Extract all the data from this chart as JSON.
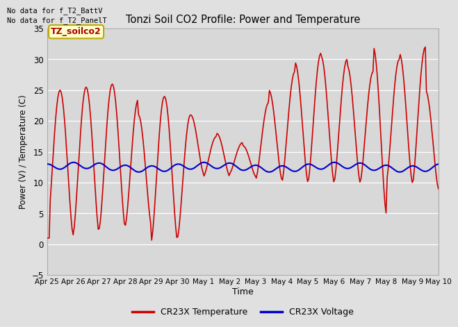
{
  "title": "Tonzi Soil CO2 Profile: Power and Temperature",
  "xlabel": "Time",
  "ylabel": "Power (V) / Temperature (C)",
  "ylim": [
    -5,
    35
  ],
  "yticks": [
    -5,
    0,
    5,
    10,
    15,
    20,
    25,
    30,
    35
  ],
  "bg_color": "#e0e0e0",
  "plot_bg_color": "#d8d8d8",
  "grid_color": "#ffffff",
  "text_no_data_1": "No data for f_T2_BattV",
  "text_no_data_2": "No data for f_T2_PanelT",
  "legend_box_label": "TZ_soilco2",
  "legend_box_color": "#ffffcc",
  "legend_box_border": "#bbaa00",
  "legend_label_color": "#aa0000",
  "legend_items": [
    "CR23X Temperature",
    "CR23X Voltage"
  ],
  "legend_colors": [
    "#cc0000",
    "#0000cc"
  ],
  "x_tick_labels": [
    "Apr 25",
    "Apr 26",
    "Apr 27",
    "Apr 28",
    "Apr 29",
    "Apr 30",
    "May 1",
    "May 2",
    "May 3",
    "May 4",
    "May 5",
    "May 6",
    "May 7",
    "May 8",
    "May 9",
    "May 10"
  ],
  "red_line_color": "#cc0000",
  "blue_line_color": "#0000cc",
  "n_days": 15,
  "pts_per_day": 24
}
